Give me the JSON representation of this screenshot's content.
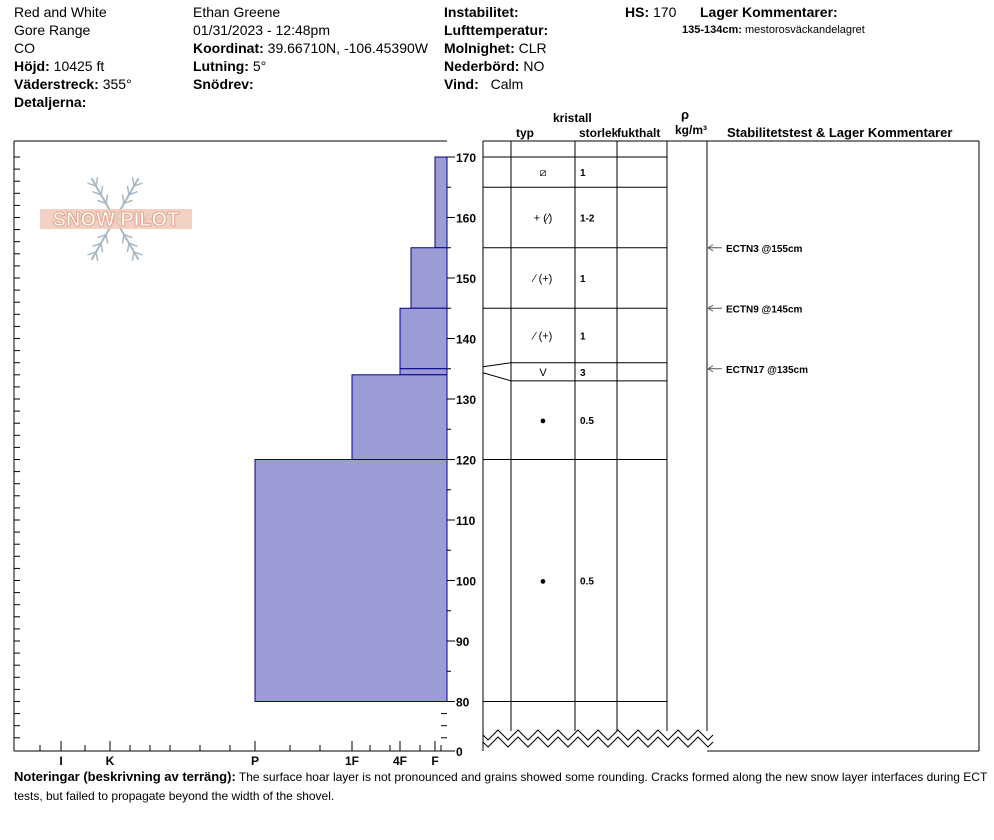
{
  "header": {
    "location": "Red and White",
    "range": "Gore Range",
    "state": "CO",
    "elevation_label": "Höjd:",
    "elevation_value": "10425 ft",
    "aspect_label": "Väderstreck:",
    "aspect_value": "355°",
    "details_label": "Detaljerna:",
    "observer": "Ethan Greene",
    "datetime": "01/31/2023 - 12:48pm",
    "coord_label": "Koordinat:",
    "coord_value": "39.66710N, -106.45390W",
    "slope_label": "Lutning:",
    "slope_value": "5°",
    "drift_label": "Snödrev:",
    "instability_label": "Instabilitet:",
    "airtemp_label": "Lufttemperatur:",
    "sky_label": "Molnighet:",
    "sky_value": "CLR",
    "precip_label": "Nederbörd:",
    "precip_value": "NO",
    "wind_label": "Vind:",
    "wind_value": "Calm",
    "hs_label": "HS:",
    "hs_value": "170",
    "layer_comments_label": "Lager Kommentarer:",
    "layer_comment_range": "135-134cm:",
    "layer_comment_text": "mestorosväckandelagret"
  },
  "logo_text": "SNOW PILOT",
  "columns": {
    "crystal_label": "kristall",
    "type_label": "typ",
    "size_label": "storlek",
    "moisture_label": "fukthalt",
    "rho_label": "ρ",
    "density_unit": "kg/m³",
    "stability_label": "Stabilitetstest & Lager Kommentarer"
  },
  "notes": {
    "label": "Noteringar (beskrivning av terräng):",
    "text": "The surface hoar layer is not pronounced and grains showed some rounding. Cracks formed along the new snow layer interfaces during ECT tests, but failed to propagate beyond the width of the shovel."
  },
  "colors": {
    "hardness_fill": "#9b9bd6",
    "hardness_stroke": "#00008b"
  },
  "chart_data": {
    "type": "snow_profile",
    "y_ticks": [
      170,
      160,
      150,
      140,
      130,
      120,
      110,
      100,
      90,
      80,
      0
    ],
    "hardness_ticks": [
      "I",
      "K",
      "P",
      "1F",
      "4F",
      "F"
    ],
    "hardness_profile": [
      {
        "top": 170,
        "bottom": 155,
        "hardness": "F"
      },
      {
        "top": 155,
        "bottom": 145,
        "hardness": "F-4F"
      },
      {
        "top": 145,
        "bottom": 135,
        "hardness": "4F-1F"
      },
      {
        "top": 135,
        "bottom": 134,
        "hardness": "4F-1F"
      },
      {
        "top": 134,
        "bottom": 120,
        "hardness": "1F"
      },
      {
        "top": 120,
        "bottom": 80,
        "hardness": "P"
      }
    ],
    "layers": [
      {
        "top": 170,
        "bottom": 165,
        "form": "⧄",
        "size": "1"
      },
      {
        "top": 165,
        "bottom": 155,
        "form": "+ (⁄)",
        "size": "1-2"
      },
      {
        "top": 155,
        "bottom": 145,
        "form": "⁄ (+)",
        "size": "1"
      },
      {
        "top": 145,
        "bottom": 136,
        "form": "⁄ (+)",
        "size": "1"
      },
      {
        "top": 136,
        "bottom": 133,
        "form": "V",
        "size": "3"
      },
      {
        "top": 133,
        "bottom": 120,
        "form": "●",
        "size": "0.5"
      },
      {
        "top": 120,
        "bottom": 80,
        "form": "●",
        "size": "0.5"
      }
    ],
    "stability_tests": [
      {
        "depth": 155,
        "text": "ECTN3 @155cm"
      },
      {
        "depth": 145,
        "text": "ECTN9 @145cm"
      },
      {
        "depth": 135,
        "text": "ECTN17 @135cm"
      }
    ]
  }
}
